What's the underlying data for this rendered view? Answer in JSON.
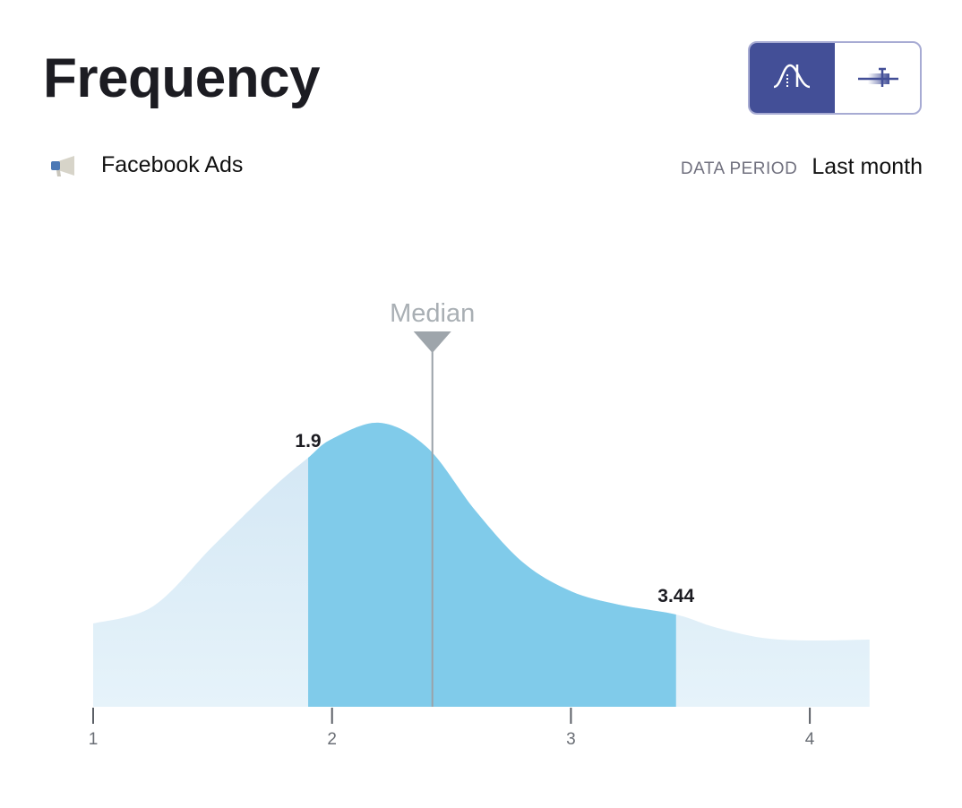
{
  "header": {
    "title": "Frequency"
  },
  "toggle": {
    "options": [
      {
        "icon": "distribution-curve-icon",
        "active": true
      },
      {
        "icon": "box-plot-icon",
        "active": false
      }
    ],
    "accent": "#434f97"
  },
  "source": {
    "icon": "megaphone-icon",
    "label": "Facebook Ads"
  },
  "period": {
    "label": "DATA PERIOD",
    "value": "Last month"
  },
  "chart_data": {
    "type": "area",
    "x": [
      1,
      1.25,
      1.5,
      1.75,
      1.9,
      2.0,
      2.2,
      2.4,
      2.6,
      2.8,
      3.0,
      3.2,
      3.44,
      3.6,
      3.8,
      4.0,
      4.25
    ],
    "density": [
      93,
      112,
      179,
      244,
      278,
      299,
      317,
      289,
      219,
      161,
      129,
      114,
      103,
      89,
      77,
      74,
      75
    ],
    "xlim": [
      1,
      4.25
    ],
    "xticks": [
      "1",
      "2",
      "3",
      "4"
    ],
    "range_low": {
      "value": 1.9,
      "label": "1.9"
    },
    "range_high": {
      "value": 3.44,
      "label": "3.44"
    },
    "median": {
      "value": 2.42,
      "label": "Median"
    },
    "colors": {
      "light": "#dcebf6",
      "dark_top": "#0095d0",
      "dark_bottom": "#7ecbea",
      "median": "#9aa2a8"
    }
  }
}
